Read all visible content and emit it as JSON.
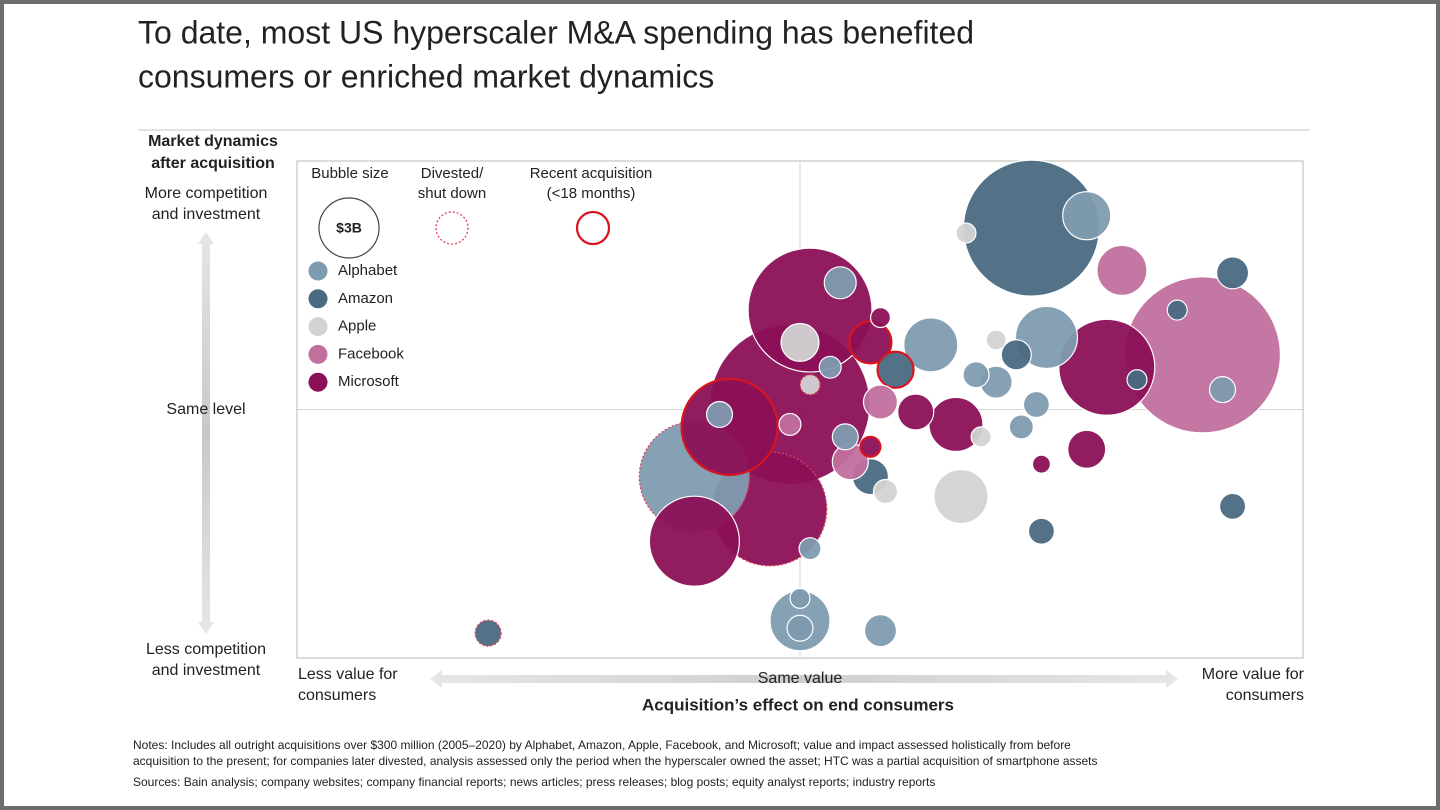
{
  "chart_data": {
    "type": "bubble",
    "title": [
      "To date, most US hyperscaler M&A spending has benefited",
      "consumers or enriched market dynamics"
    ],
    "y_axis_title": [
      "Market dynamics",
      "after acquisition"
    ],
    "y_labels": {
      "top": [
        "More competition",
        "and investment"
      ],
      "middle": "Same level",
      "bottom": [
        "Less competition",
        "and investment"
      ]
    },
    "x_labels": {
      "left": [
        "Less value for",
        "consumers"
      ],
      "middle": "Same value",
      "right": [
        "More value for",
        "consumers"
      ]
    },
    "x_axis_title": "Acquisition’s effect on end consumers",
    "xlim": [
      -1,
      1
    ],
    "ylim": [
      -1,
      1
    ],
    "legend": {
      "size_title": "Bubble size",
      "size_ref": {
        "value": 3,
        "label": "$3B"
      },
      "divested_title": [
        "Divested/",
        "shut down"
      ],
      "recent_title": [
        "Recent acquisition",
        "(<18 months)"
      ],
      "divested_color": "#e0405a",
      "recent_color": "#d8141e"
    },
    "series": [
      {
        "name": "Alphabet",
        "color": "#7f9bb0",
        "x": [
          0.57,
          0.08,
          0.26,
          0.49,
          0.35,
          0.39,
          0.47,
          0.44,
          0.84,
          0.09,
          0.06,
          -0.16,
          0.02,
          0,
          0,
          0,
          0.16,
          -0.21
        ],
        "y": [
          0.78,
          0.51,
          0.26,
          0.29,
          0.14,
          0.11,
          0.02,
          -0.07,
          0.08,
          -0.11,
          0.17,
          -0.02,
          -0.56,
          -0.85,
          -0.76,
          -0.88,
          -0.89,
          -0.27
        ],
        "sizes": [
          1.92,
          0.85,
          2.43,
          3.2,
          0.56,
          0.85,
          0.56,
          0.48,
          0.56,
          0.56,
          0.4,
          0.56,
          0.4,
          3,
          0.33,
          0.56,
          0.85,
          10.1
        ],
        "divested": [
          false,
          false,
          false,
          false,
          false,
          false,
          false,
          false,
          false,
          false,
          false,
          false,
          false,
          false,
          false,
          false,
          false,
          true
        ],
        "recent": [
          false,
          false,
          false,
          false,
          false,
          false,
          false,
          false,
          false,
          false,
          false,
          false,
          false,
          false,
          false,
          false,
          false,
          false
        ]
      },
      {
        "name": "Amazon",
        "color": "#4a6a82",
        "x": [
          0.46,
          0.86,
          0.75,
          0.43,
          0.67,
          0.14,
          0.86,
          0.48,
          -0.62,
          0.19
        ],
        "y": [
          0.73,
          0.55,
          0.4,
          0.22,
          0.12,
          -0.27,
          -0.39,
          -0.49,
          -0.9,
          0.16
        ],
        "sizes": [
          15.4,
          0.85,
          0.33,
          0.75,
          0.33,
          1.08,
          0.56,
          0.56,
          0.56,
          1.08
        ],
        "divested": [
          false,
          false,
          false,
          false,
          false,
          false,
          false,
          false,
          true,
          false
        ],
        "recent": [
          false,
          false,
          false,
          false,
          false,
          false,
          false,
          false,
          false,
          true
        ]
      },
      {
        "name": "Apple",
        "color": "#d3d3d3",
        "x": [
          0.33,
          0,
          0.39,
          0.36,
          0.17,
          0.32,
          0.02
        ],
        "y": [
          0.71,
          0.27,
          0.28,
          -0.11,
          -0.33,
          -0.35,
          0.1
        ],
        "sizes": [
          0.33,
          1.2,
          0.33,
          0.33,
          0.48,
          2.43,
          0.33
        ],
        "divested": [
          false,
          false,
          false,
          false,
          false,
          false,
          true
        ],
        "recent": [
          false,
          false,
          false,
          false,
          false,
          false,
          false
        ]
      },
      {
        "name": "Facebook",
        "color": "#c1709d",
        "x": [
          0.64,
          0.8,
          0.16,
          -0.02,
          0.1
        ],
        "y": [
          0.56,
          0.22,
          0.03,
          -0.06,
          -0.21
        ],
        "sizes": [
          2.08,
          20.3,
          0.96,
          0.4,
          1.08
        ],
        "divested": [
          false,
          false,
          false,
          false,
          false
        ],
        "recent": [
          false,
          false,
          false,
          false,
          false
        ]
      },
      {
        "name": "Microsoft",
        "color": "#8b1057",
        "x": [
          0.02,
          -0.02,
          0.14,
          0.16,
          -0.14,
          -0.06,
          -0.21,
          0.23,
          0.31,
          0.61,
          0.57,
          0.48,
          0.14
        ],
        "y": [
          0.4,
          0.02,
          0.27,
          0.37,
          -0.07,
          -0.4,
          -0.53,
          -0.01,
          -0.06,
          0.17,
          -0.16,
          -0.22,
          -0.15
        ],
        "sizes": [
          12.8,
          21.3,
          1.47,
          0.33,
          7.68,
          10.8,
          6.75,
          1.08,
          2.43,
          7.68,
          1.2,
          0.27,
          0.33
        ],
        "divested": [
          false,
          false,
          false,
          false,
          false,
          true,
          false,
          false,
          false,
          false,
          false,
          false,
          false
        ],
        "recent": [
          false,
          false,
          true,
          false,
          true,
          false,
          false,
          false,
          false,
          false,
          false,
          false,
          true
        ]
      }
    ],
    "notes": [
      "Notes: Includes all outright acquisitions over $300 million (2005–2020) by Alphabet, Amazon, Apple, Facebook, and Microsoft; value and impact assessed holistically from before",
      "acquisition to the present; for companies later divested, analysis assessed only the period when the hyperscaler owned the asset; HTC was a partial acquisition of smartphone assets"
    ],
    "sources": "Sources: Bain analysis; company websites; company financial reports; news articles; press releases; blog posts; equity analyst reports; industry reports"
  }
}
